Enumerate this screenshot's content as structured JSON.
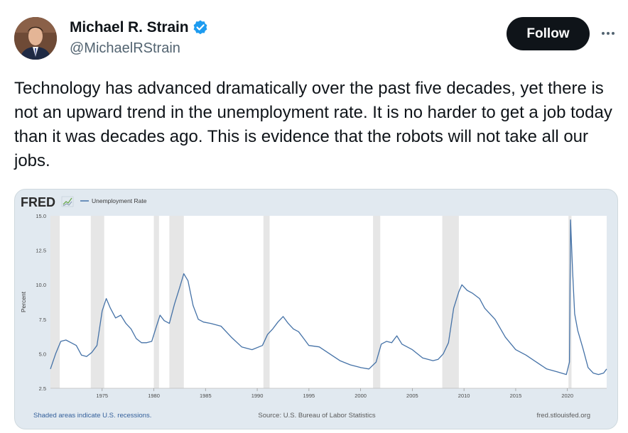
{
  "author": {
    "display_name": "Michael R. Strain",
    "handle": "@MichaelRStrain",
    "verified_icon": "verified-badge-icon",
    "verified_color": "#1d9bf0"
  },
  "actions": {
    "follow_label": "Follow",
    "more_icon": "more-horizontal-icon"
  },
  "tweet": {
    "text": "Technology has advanced dramatically over the past five decades, yet there is not an upward trend in the unemployment rate. It is no harder to get a job today than it was decades ago. This is evidence that the robots will not take all our jobs."
  },
  "fred": {
    "logo": "FRED",
    "footer_left": "Shaded areas indicate U.S. recessions.",
    "footer_center": "Source: U.S. Bureau of Labor Statistics",
    "footer_right": "fred.stlouisfed.org"
  },
  "chart_data": {
    "type": "line",
    "title": "",
    "xlabel": "",
    "ylabel": "Percent",
    "ylim": [
      2.5,
      15.0
    ],
    "xlim": [
      1970.0,
      2023.8
    ],
    "yticks": [
      "2.5",
      "5.0",
      "7.5",
      "10.0",
      "12.5",
      "15.0"
    ],
    "xticks": [
      "1975",
      "1980",
      "1985",
      "1990",
      "1995",
      "2000",
      "2005",
      "2010",
      "2015",
      "2020"
    ],
    "grid": false,
    "legend": "top-left",
    "line_color": "#4572a7",
    "recession_color": "#e6e6e6",
    "recessions": [
      [
        1969.9,
        1970.9
      ],
      [
        1973.9,
        1975.2
      ],
      [
        1980.0,
        1980.5
      ],
      [
        1981.5,
        1982.9
      ],
      [
        1990.6,
        1991.2
      ],
      [
        2001.2,
        2001.9
      ],
      [
        2007.9,
        2009.5
      ],
      [
        2020.1,
        2020.4
      ]
    ],
    "series": [
      {
        "name": "Unemployment Rate",
        "x": [
          1970.0,
          1970.5,
          1971.0,
          1971.5,
          1972.0,
          1972.5,
          1973.0,
          1973.5,
          1974.0,
          1974.5,
          1975.0,
          1975.4,
          1975.8,
          1976.3,
          1976.8,
          1977.3,
          1977.8,
          1978.3,
          1978.8,
          1979.3,
          1979.8,
          1980.3,
          1980.6,
          1981.0,
          1981.5,
          1982.0,
          1982.5,
          1982.9,
          1983.3,
          1983.8,
          1984.3,
          1984.8,
          1985.5,
          1986.5,
          1987.5,
          1988.5,
          1989.5,
          1990.5,
          1991.0,
          1991.5,
          1992.0,
          1992.5,
          1993.0,
          1993.5,
          1994.0,
          1994.5,
          1995.0,
          1996.0,
          1997.0,
          1998.0,
          1999.0,
          2000.0,
          2000.8,
          2001.5,
          2002.0,
          2002.5,
          2003.0,
          2003.5,
          2004.0,
          2005.0,
          2006.0,
          2007.0,
          2007.5,
          2008.0,
          2008.5,
          2009.0,
          2009.5,
          2009.8,
          2010.3,
          2010.8,
          2011.5,
          2012.0,
          2013.0,
          2014.0,
          2015.0,
          2016.0,
          2017.0,
          2018.0,
          2019.0,
          2019.9,
          2020.2,
          2020.3,
          2020.5,
          2020.7,
          2021.0,
          2021.5,
          2022.0,
          2022.5,
          2023.0,
          2023.5,
          2023.8
        ],
        "values": [
          3.9,
          5.0,
          5.9,
          6.0,
          5.8,
          5.6,
          4.9,
          4.8,
          5.1,
          5.6,
          8.1,
          9.0,
          8.3,
          7.6,
          7.8,
          7.2,
          6.8,
          6.1,
          5.8,
          5.8,
          5.9,
          7.1,
          7.8,
          7.4,
          7.2,
          8.6,
          9.8,
          10.8,
          10.3,
          8.5,
          7.5,
          7.3,
          7.2,
          7.0,
          6.2,
          5.5,
          5.3,
          5.6,
          6.4,
          6.8,
          7.3,
          7.7,
          7.2,
          6.8,
          6.6,
          6.1,
          5.6,
          5.5,
          5.0,
          4.5,
          4.2,
          4.0,
          3.9,
          4.4,
          5.7,
          5.9,
          5.8,
          6.3,
          5.7,
          5.3,
          4.7,
          4.5,
          4.6,
          5.0,
          5.8,
          8.3,
          9.5,
          10.0,
          9.6,
          9.4,
          9.0,
          8.3,
          7.5,
          6.2,
          5.3,
          4.9,
          4.4,
          3.9,
          3.7,
          3.5,
          4.4,
          14.7,
          11.0,
          7.9,
          6.7,
          5.4,
          4.0,
          3.6,
          3.5,
          3.6,
          3.9
        ]
      }
    ]
  }
}
